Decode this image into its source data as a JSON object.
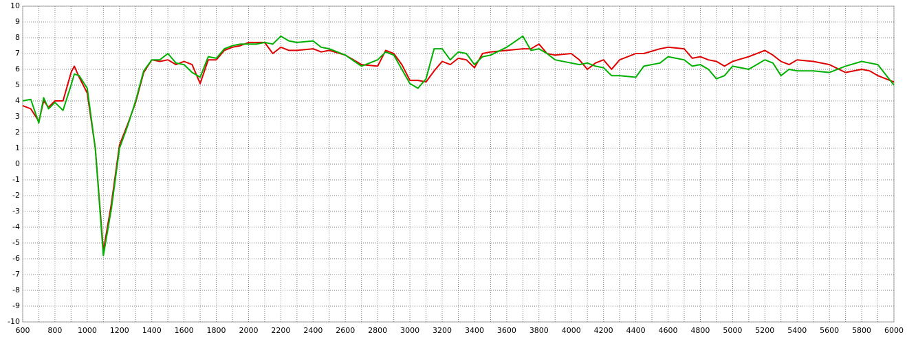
{
  "chart_data": {
    "type": "line",
    "x": [
      600,
      650,
      700,
      730,
      760,
      800,
      850,
      900,
      920,
      950,
      1000,
      1050,
      1100,
      1150,
      1200,
      1250,
      1300,
      1350,
      1400,
      1450,
      1500,
      1550,
      1600,
      1650,
      1700,
      1750,
      1800,
      1850,
      1900,
      1950,
      2000,
      2050,
      2100,
      2150,
      2200,
      2250,
      2300,
      2400,
      2450,
      2500,
      2600,
      2700,
      2800,
      2850,
      2900,
      2950,
      3000,
      3050,
      3100,
      3150,
      3200,
      3250,
      3300,
      3350,
      3400,
      3450,
      3500,
      3600,
      3700,
      3750,
      3800,
      3850,
      3900,
      4000,
      4050,
      4100,
      4150,
      4200,
      4250,
      4300,
      4400,
      4450,
      4550,
      4600,
      4700,
      4750,
      4800,
      4850,
      4900,
      4950,
      5000,
      5100,
      5200,
      5250,
      5300,
      5350,
      5400,
      5500,
      5600,
      5700,
      5800,
      5850,
      5900,
      6000
    ],
    "series": [
      {
        "color": "#e00000",
        "values": [
          3.7,
          3.5,
          2.7,
          4.0,
          3.6,
          4.0,
          4.0,
          5.8,
          6.2,
          5.5,
          4.5,
          1.0,
          -5.5,
          -2.5,
          1.2,
          2.5,
          3.9,
          5.8,
          6.6,
          6.5,
          6.6,
          6.3,
          6.5,
          6.3,
          5.1,
          6.6,
          6.6,
          7.2,
          7.4,
          7.5,
          7.7,
          7.7,
          7.7,
          7.0,
          7.4,
          7.2,
          7.2,
          7.3,
          7.1,
          7.2,
          6.9,
          6.3,
          6.2,
          7.2,
          7.0,
          6.3,
          5.3,
          5.3,
          5.2,
          5.9,
          6.5,
          6.3,
          6.7,
          6.6,
          6.1,
          7.0,
          7.1,
          7.2,
          7.3,
          7.3,
          7.6,
          7.0,
          6.9,
          7.0,
          6.6,
          6.0,
          6.4,
          6.6,
          6.0,
          6.6,
          7.0,
          7.0,
          7.3,
          7.4,
          7.3,
          6.7,
          6.8,
          6.6,
          6.5,
          6.2,
          6.5,
          6.8,
          7.2,
          6.9,
          6.5,
          6.3,
          6.6,
          6.5,
          6.3,
          5.8,
          6.0,
          5.9,
          5.6,
          5.2
        ]
      },
      {
        "color": "#00b000",
        "values": [
          4.0,
          4.1,
          2.6,
          4.2,
          3.5,
          3.9,
          3.4,
          5.0,
          5.7,
          5.6,
          4.8,
          1.0,
          -5.8,
          -2.8,
          1.0,
          2.4,
          4.0,
          5.9,
          6.6,
          6.6,
          7.0,
          6.4,
          6.3,
          5.8,
          5.5,
          6.8,
          6.7,
          7.3,
          7.5,
          7.6,
          7.6,
          7.6,
          7.7,
          7.6,
          8.1,
          7.8,
          7.7,
          7.8,
          7.4,
          7.3,
          6.9,
          6.2,
          6.6,
          7.1,
          6.9,
          6.0,
          5.1,
          4.8,
          5.4,
          7.3,
          7.3,
          6.6,
          7.1,
          7.0,
          6.3,
          6.8,
          6.9,
          7.4,
          8.1,
          7.2,
          7.3,
          7.0,
          6.6,
          6.4,
          6.3,
          6.4,
          6.2,
          6.1,
          5.6,
          5.6,
          5.5,
          6.2,
          6.4,
          6.8,
          6.6,
          6.2,
          6.3,
          6.0,
          5.4,
          5.6,
          6.2,
          6.0,
          6.6,
          6.4,
          5.6,
          6.0,
          5.9,
          5.9,
          5.8,
          6.2,
          6.5,
          6.4,
          6.3,
          5.0
        ]
      }
    ],
    "xlim": [
      600,
      6000
    ],
    "xticks": [
      600,
      800,
      1000,
      1200,
      1400,
      1600,
      1800,
      2000,
      2200,
      2400,
      2600,
      2800,
      3000,
      3200,
      3400,
      3600,
      3800,
      4000,
      4200,
      4400,
      4600,
      4800,
      5000,
      5200,
      5400,
      5600,
      5800,
      6000
    ],
    "ylim": [
      -10,
      10
    ],
    "yticks": [
      -10,
      -9,
      -8,
      -7,
      -6,
      -5,
      -4,
      -3,
      -2,
      -1,
      0,
      1,
      2,
      3,
      4,
      5,
      6,
      7,
      8,
      9,
      10
    ],
    "grid": true
  }
}
